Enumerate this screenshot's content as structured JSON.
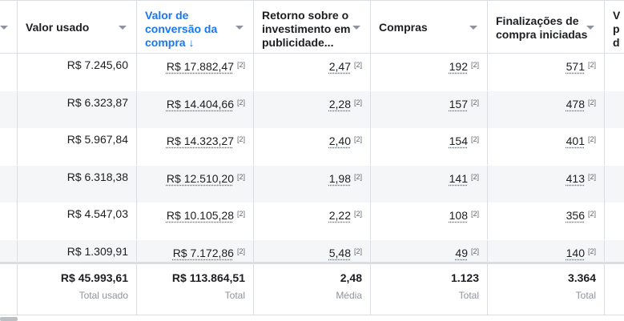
{
  "columns": [
    {
      "label": "Valor usado"
    },
    {
      "label": "Valor de conversão da compra ↓",
      "line1": "Valor de",
      "line2": "conversão da",
      "line3": "compra ↓"
    },
    {
      "label": "Retorno sobre o investimento em publicidade...",
      "line1": "Retorno sobre o",
      "line2": "investimento em",
      "line3": "publicidade..."
    },
    {
      "label": "Compras"
    },
    {
      "label": "Finalizações de compra iniciadas",
      "line1": "Finalizações de",
      "line2": "compra iniciadas"
    },
    {
      "label": "V",
      "line1": "V",
      "line2": "p",
      "line3": "d"
    }
  ],
  "ref_mark": "[2]",
  "rows": [
    {
      "spend": "R$ 7.245,60",
      "conv_value": "R$ 17.882,47",
      "roas": "2,47",
      "purchases": "192",
      "checkouts": "571"
    },
    {
      "spend": "R$ 6.323,87",
      "conv_value": "R$ 14.404,66",
      "roas": "2,28",
      "purchases": "157",
      "checkouts": "478"
    },
    {
      "spend": "R$ 5.967,84",
      "conv_value": "R$ 14.323,27",
      "roas": "2,40",
      "purchases": "154",
      "checkouts": "401"
    },
    {
      "spend": "R$ 6.318,38",
      "conv_value": "R$ 12.510,20",
      "roas": "1,98",
      "purchases": "141",
      "checkouts": "413"
    },
    {
      "spend": "R$ 4.547,03",
      "conv_value": "R$ 10.105,28",
      "roas": "2,22",
      "purchases": "108",
      "checkouts": "356"
    },
    {
      "spend": "R$ 1.309,91",
      "conv_value": "R$ 7.172,86",
      "roas": "5,48",
      "purchases": "49",
      "checkouts": "140"
    }
  ],
  "totals": {
    "spend": {
      "value": "R$ 45.993,61",
      "label": "Total usado"
    },
    "conv_value": {
      "value": "R$ 113.864,51",
      "label": "Total"
    },
    "roas": {
      "value": "2,48",
      "label": "Média"
    },
    "purchases": {
      "value": "1.123",
      "label": "Total"
    },
    "checkouts": {
      "value": "3.364",
      "label": "Total"
    }
  },
  "colors": {
    "accent": "#1877f2",
    "border": "#dadde1",
    "alt_row": "#f5f6f7",
    "muted": "#8d949e"
  }
}
